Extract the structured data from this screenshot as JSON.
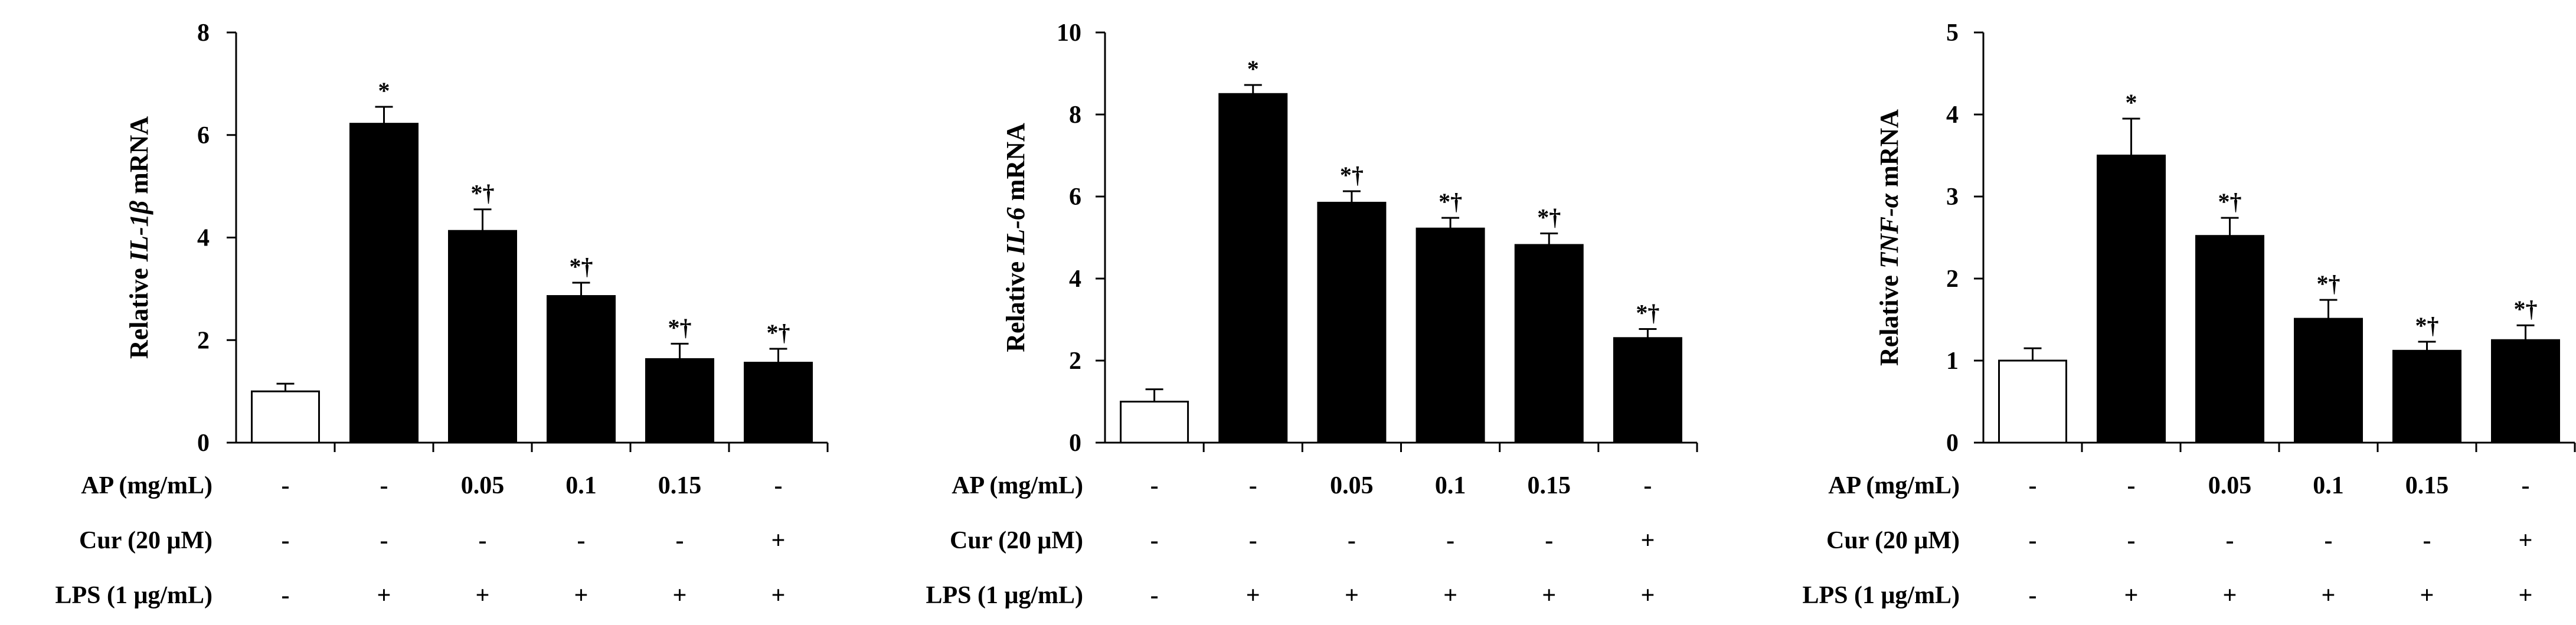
{
  "figure": {
    "treatment_row_labels": [
      "AP (mg/mL)",
      "Cur (20 μM)",
      "LPS (1 μg/mL)"
    ],
    "treatments": {
      "ap": [
        "-",
        "-",
        "0.05",
        "0.1",
        "0.15",
        "-"
      ],
      "cur": [
        "-",
        "-",
        "-",
        "-",
        "-",
        "+"
      ],
      "lps": [
        "-",
        "+",
        "+",
        "+",
        "+",
        "+"
      ]
    }
  },
  "chart_data": [
    {
      "type": "bar",
      "ylabel_parts": [
        "Relative ",
        "IL-1β",
        " mRNA"
      ],
      "ylim": [
        0,
        8
      ],
      "yticks": [
        0,
        2,
        4,
        6,
        8
      ],
      "ytick_labels": [
        "0",
        "2",
        "4",
        "6",
        "8"
      ],
      "values": [
        1.0,
        6.22,
        4.13,
        2.86,
        1.63,
        1.56
      ],
      "errors": [
        0.15,
        0.33,
        0.42,
        0.26,
        0.3,
        0.27
      ],
      "fills": [
        "#ffffff",
        "#000000",
        "#000000",
        "#000000",
        "#000000",
        "#000000"
      ],
      "annotations": [
        "",
        "*",
        "*†",
        "*†",
        "*†",
        "*†"
      ]
    },
    {
      "type": "bar",
      "ylabel_parts": [
        "Relative ",
        "IL-6",
        " mRNA"
      ],
      "ylim": [
        0,
        10
      ],
      "yticks": [
        0,
        2,
        4,
        6,
        8,
        10
      ],
      "ytick_labels": [
        "0",
        "2",
        "4",
        "6",
        "8",
        "10"
      ],
      "values": [
        1.0,
        8.5,
        5.85,
        5.22,
        4.82,
        2.55
      ],
      "errors": [
        0.3,
        0.22,
        0.28,
        0.26,
        0.28,
        0.22
      ],
      "fills": [
        "#ffffff",
        "#000000",
        "#000000",
        "#000000",
        "#000000",
        "#000000"
      ],
      "annotations": [
        "",
        "*",
        "*†",
        "*†",
        "*†",
        "*†"
      ]
    },
    {
      "type": "bar",
      "ylabel_parts": [
        "Relative ",
        "TNF-α",
        " mRNA"
      ],
      "ylim": [
        0,
        5
      ],
      "yticks": [
        0,
        1,
        2,
        3,
        4,
        5
      ],
      "ytick_labels": [
        "0",
        "1",
        "2",
        "3",
        "4",
        "5"
      ],
      "values": [
        1.0,
        3.5,
        2.52,
        1.51,
        1.12,
        1.25
      ],
      "errors": [
        0.15,
        0.45,
        0.22,
        0.23,
        0.11,
        0.18
      ],
      "fills": [
        "#ffffff",
        "#000000",
        "#000000",
        "#000000",
        "#000000",
        "#000000"
      ],
      "annotations": [
        "",
        "*",
        "*†",
        "*†",
        "*†",
        "*†"
      ]
    }
  ]
}
